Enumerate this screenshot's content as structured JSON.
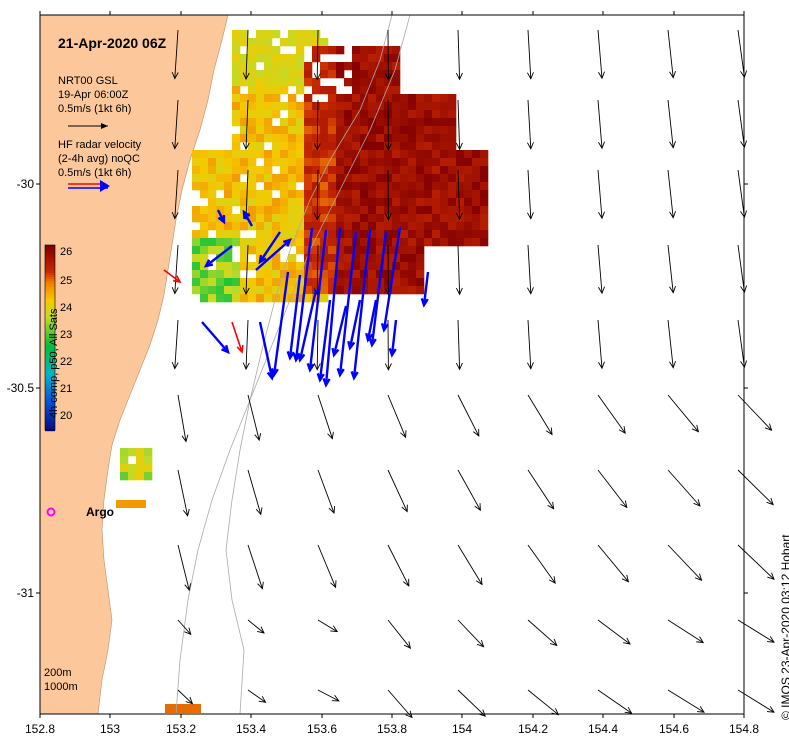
{
  "map": {
    "title": "21-Apr-2020 06Z",
    "legend": {
      "model_line1": "NRT00 GSL",
      "model_line2": "19-Apr 06:00Z",
      "model_line3": "0.5m/s (1kt 6h)",
      "radar_line1": "HF radar velocity",
      "radar_line2": "(2-4h avg) noQC",
      "radar_line3": "0.5m/s (1kt 6h)"
    },
    "colorbar": {
      "label": "4h comp, p50, All Sats",
      "ticks": [
        "26",
        "25",
        "24",
        "23",
        "22",
        "21",
        "20"
      ],
      "min": 20,
      "max": 26.5
    },
    "x_ticks": [
      "152.8",
      "153",
      "153.2",
      "153.4",
      "153.6",
      "153.8",
      "154",
      "154.2",
      "154.4",
      "154.6",
      "154.8"
    ],
    "y_ticks": [
      "-30",
      "-30.5",
      "-31"
    ],
    "argo_label": "Argo",
    "depth_labels": {
      "d200": "200m",
      "d1000": "1000m"
    },
    "credit": "© IMOS 23-Apr-2020 03:12 Hobart",
    "colors": {
      "land": "#fcc89b",
      "model_arrow": "#000000",
      "radar_blue": "#0000ff",
      "radar_red": "#ff0000",
      "argo": "#ff00ff"
    }
  }
}
